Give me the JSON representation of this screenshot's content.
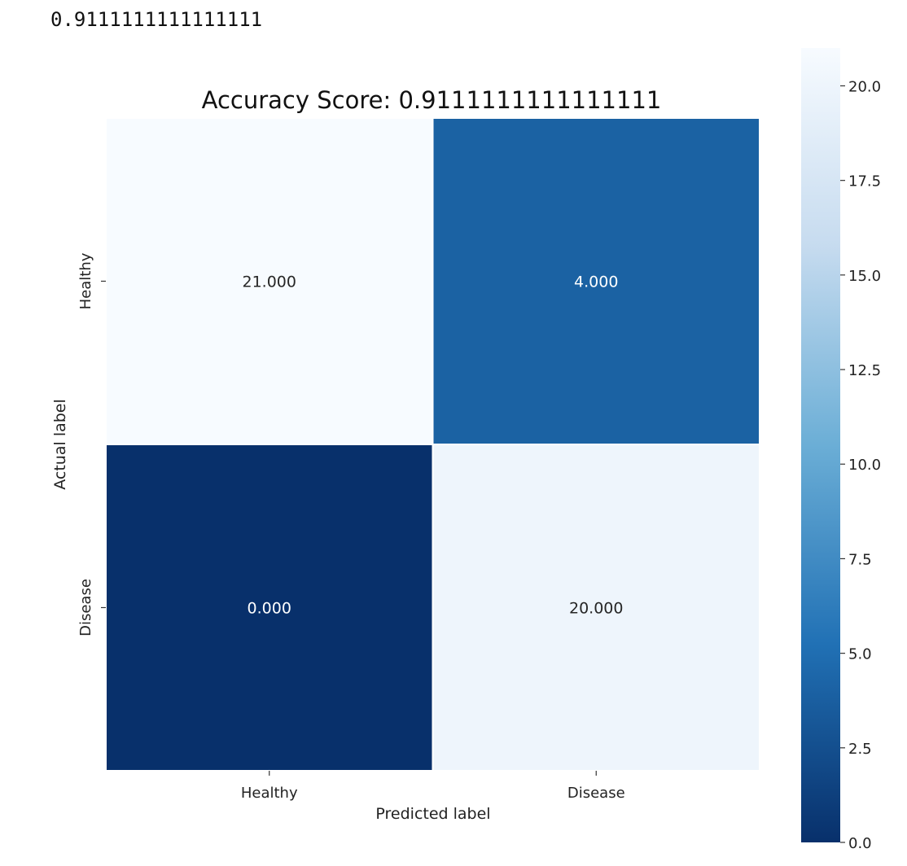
{
  "output_text": "0.9111111111111111",
  "chart_data": {
    "type": "heatmap",
    "title": "Accuracy Score: 0.9111111111111111",
    "xlabel": "Predicted label",
    "ylabel": "Actual label",
    "x_categories": [
      "Healthy",
      "Disease"
    ],
    "y_categories": [
      "Healthy",
      "Disease"
    ],
    "values": [
      [
        21,
        4
      ],
      [
        0,
        20
      ]
    ],
    "cell_labels": [
      [
        "21.000",
        "4.000"
      ],
      [
        "0.000",
        "20.000"
      ]
    ],
    "colormap": "Blues_r",
    "colormap_stops": [
      "#08306b",
      "#2171b5",
      "#6baed6",
      "#c6dbef",
      "#f7fbff"
    ],
    "colorbar": {
      "range": [
        0,
        21
      ],
      "ticks": [
        0,
        2.5,
        5,
        7.5,
        10,
        12.5,
        15,
        17.5,
        20
      ],
      "tick_labels": [
        "0.0",
        "2.5",
        "5.0",
        "7.5",
        "10.0",
        "12.5",
        "15.0",
        "17.5",
        "20.0"
      ]
    },
    "grid": false,
    "legend": "colorbar-right"
  }
}
